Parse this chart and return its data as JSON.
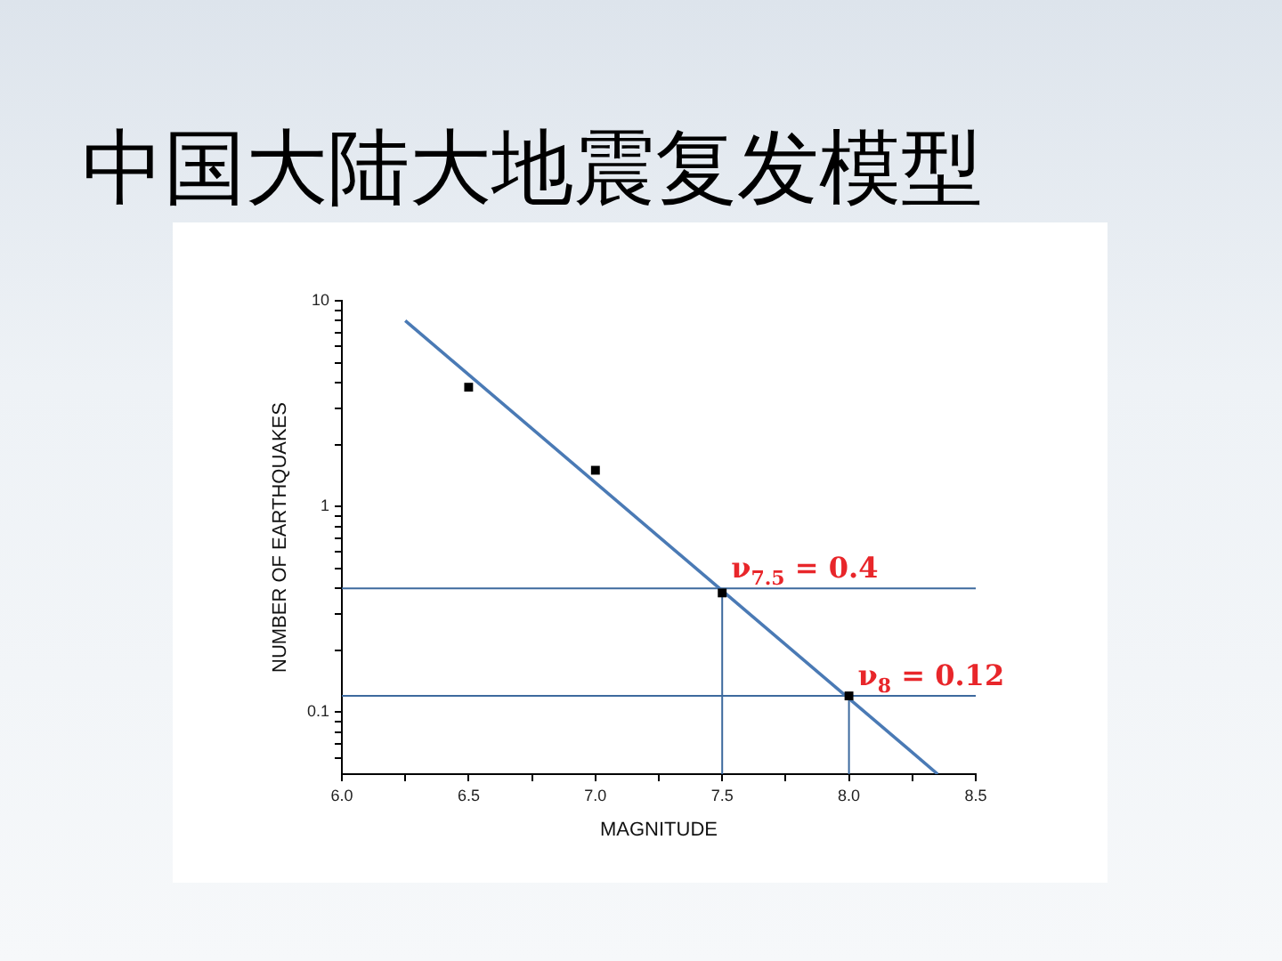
{
  "chart_data": {
    "type": "scatter",
    "title": "中国大陆大地震复发模型",
    "xlabel": "MAGNITUDE",
    "ylabel": "NUMBER OF EARTHQUAKES",
    "series": [
      {
        "color": "#000000",
        "marker": "square",
        "x": [
          6.5,
          7,
          7.5,
          8
        ],
        "values": [
          3.8,
          1.5,
          0.38,
          0.12
        ]
      },
      {
        "type": "line",
        "color": "#4a7ab5",
        "marker": "none",
        "line_style": "solid",
        "x": [
          6.25,
          8.35
        ],
        "values": [
          8,
          0.05
        ]
      }
    ],
    "xlim": [
      6,
      8.5
    ],
    "xticks": [
      {
        "value": 6,
        "label": "6.0"
      },
      {
        "value": 6.25,
        "label": null
      },
      {
        "value": 6.5,
        "label": "6.5"
      },
      {
        "value": 6.75,
        "label": null
      },
      {
        "value": 7,
        "label": "7.0"
      },
      {
        "value": 7.25,
        "label": null
      },
      {
        "value": 7.5,
        "label": "7.5"
      },
      {
        "value": 7.75,
        "label": null
      },
      {
        "value": 8,
        "label": "8.0"
      },
      {
        "value": 8.25,
        "label": null
      },
      {
        "value": 8.5,
        "label": "8.5"
      }
    ],
    "ylim": [
      0.05,
      10
    ],
    "yticks": [
      {
        "value": 0.06,
        "label": null
      },
      {
        "value": 0.07,
        "label": null
      },
      {
        "value": 0.08,
        "label": null
      },
      {
        "value": 0.09,
        "label": null
      },
      0.1,
      {
        "value": 0.2,
        "label": null
      },
      {
        "value": 0.3,
        "label": null
      },
      {
        "value": 0.4,
        "label": null
      },
      {
        "value": 0.5,
        "label": null
      },
      {
        "value": 0.6,
        "label": null
      },
      {
        "value": 0.7,
        "label": null
      },
      {
        "value": 0.8,
        "label": null
      },
      {
        "value": 0.9,
        "label": null
      },
      1,
      {
        "value": 2,
        "label": null
      },
      {
        "value": 3,
        "label": null
      },
      {
        "value": 4,
        "label": null
      },
      {
        "value": 5,
        "label": null
      },
      {
        "value": 6,
        "label": null
      },
      {
        "value": 7,
        "label": null
      },
      {
        "value": 8,
        "label": null
      },
      {
        "value": 9,
        "label": null
      },
      10
    ],
    "log": "y",
    "grid": false,
    "legend": false,
    "ref_lines": [
      {
        "axis": "y",
        "value": 0.4,
        "color": "#3d6a9e"
      },
      {
        "axis": "y",
        "value": 0.12,
        "color": "#3d6a9e"
      },
      {
        "axis": "x",
        "value": 7.5,
        "color": "#3d6a9e"
      },
      {
        "axis": "x",
        "value": 8,
        "color": "#3d6a9e"
      }
    ],
    "annotations": [
      {
        "text": "ν$_{7.5}$ = 0.4",
        "x": 7.5,
        "y": 0.4
      },
      {
        "text": "ν$_{8}$ = 0.12",
        "x": 8,
        "y": 0.12
      }
    ]
  }
}
